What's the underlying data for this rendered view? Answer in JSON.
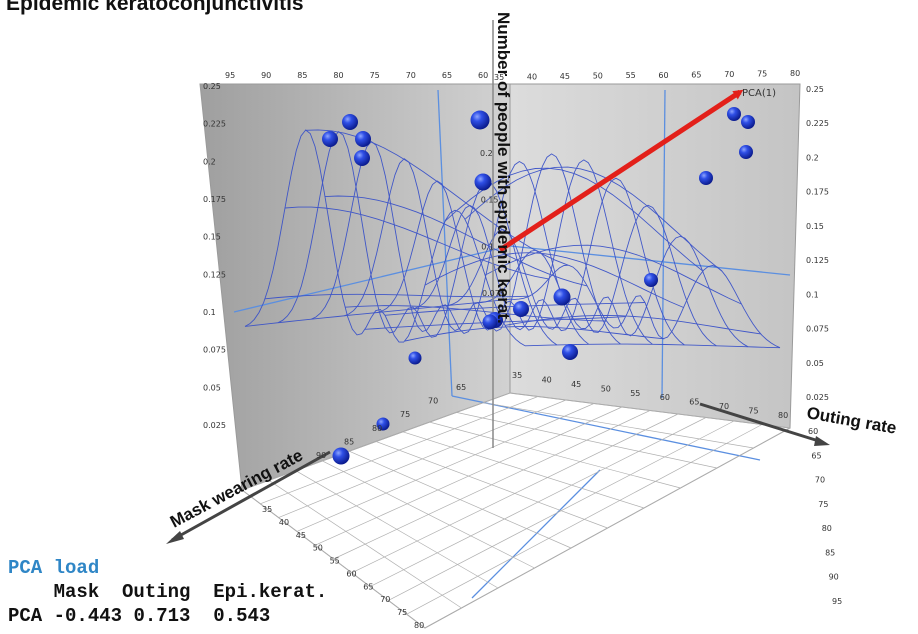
{
  "title": "Epidemic keratoconjunctivitis",
  "chart_data": {
    "type": "scatter-3d",
    "axes": {
      "x": {
        "label": "Mask wearing rate",
        "ticks": [
          35,
          40,
          45,
          50,
          55,
          60,
          65,
          70,
          75,
          80,
          85,
          90,
          95
        ]
      },
      "y": {
        "label": "Outing rate",
        "ticks": [
          35,
          40,
          45,
          50,
          55,
          60,
          65,
          70,
          75,
          80
        ]
      },
      "z": {
        "label": "Number of people with epidemic kerat.",
        "ticks": [
          "0.025",
          "0.05",
          "0.075",
          "0.1",
          "0.125",
          "0.15",
          "0.175",
          "0.2",
          "0.225",
          "0.25"
        ]
      },
      "back_right_ticks": [
        "35",
        "40",
        "45",
        "50",
        "55",
        "60",
        "65",
        "70",
        "75",
        "80"
      ],
      "back_left_ticks": [
        "95",
        "90",
        "85",
        "80",
        "75",
        "70",
        "65",
        "60"
      ],
      "left_wall_ticks": [
        "0.25",
        "0.225",
        "0.2",
        "0.175",
        "0.15",
        "0.125",
        "0.1",
        "0.075",
        "0.05",
        "0.025"
      ],
      "floor_right_ticks": [
        "60",
        "65",
        "70",
        "75",
        "80",
        "85",
        "90",
        "95"
      ],
      "floor_front_ticks": [
        "35",
        "40",
        "45",
        "50",
        "55",
        "60",
        "65",
        "70",
        "75",
        "80"
      ],
      "left_edge_ticks": [
        "90",
        "85",
        "80",
        "75",
        "70",
        "65"
      ],
      "inner_floor_ticks": [
        "35",
        "40",
        "45",
        "50",
        "55",
        "60",
        "65",
        "70",
        "75",
        "80"
      ],
      "center_ticks": [
        "0.2",
        "0.15",
        "0.1",
        "0.075"
      ]
    },
    "vector": {
      "label": "PCA(1)",
      "mask": -0.443,
      "outing": 0.713,
      "epi": 0.543
    },
    "colors": {
      "points": "#1f3fd6",
      "surface": "#3a52c8",
      "vector": "#e3201a",
      "walls": "#bfbfbf"
    }
  },
  "pca_load": {
    "title": "PCA load",
    "header": [
      "Mask",
      "Outing",
      "Epi.kerat."
    ],
    "row_label": "PCA",
    "values": [
      "-0.443",
      "0.713",
      "0.543"
    ]
  }
}
